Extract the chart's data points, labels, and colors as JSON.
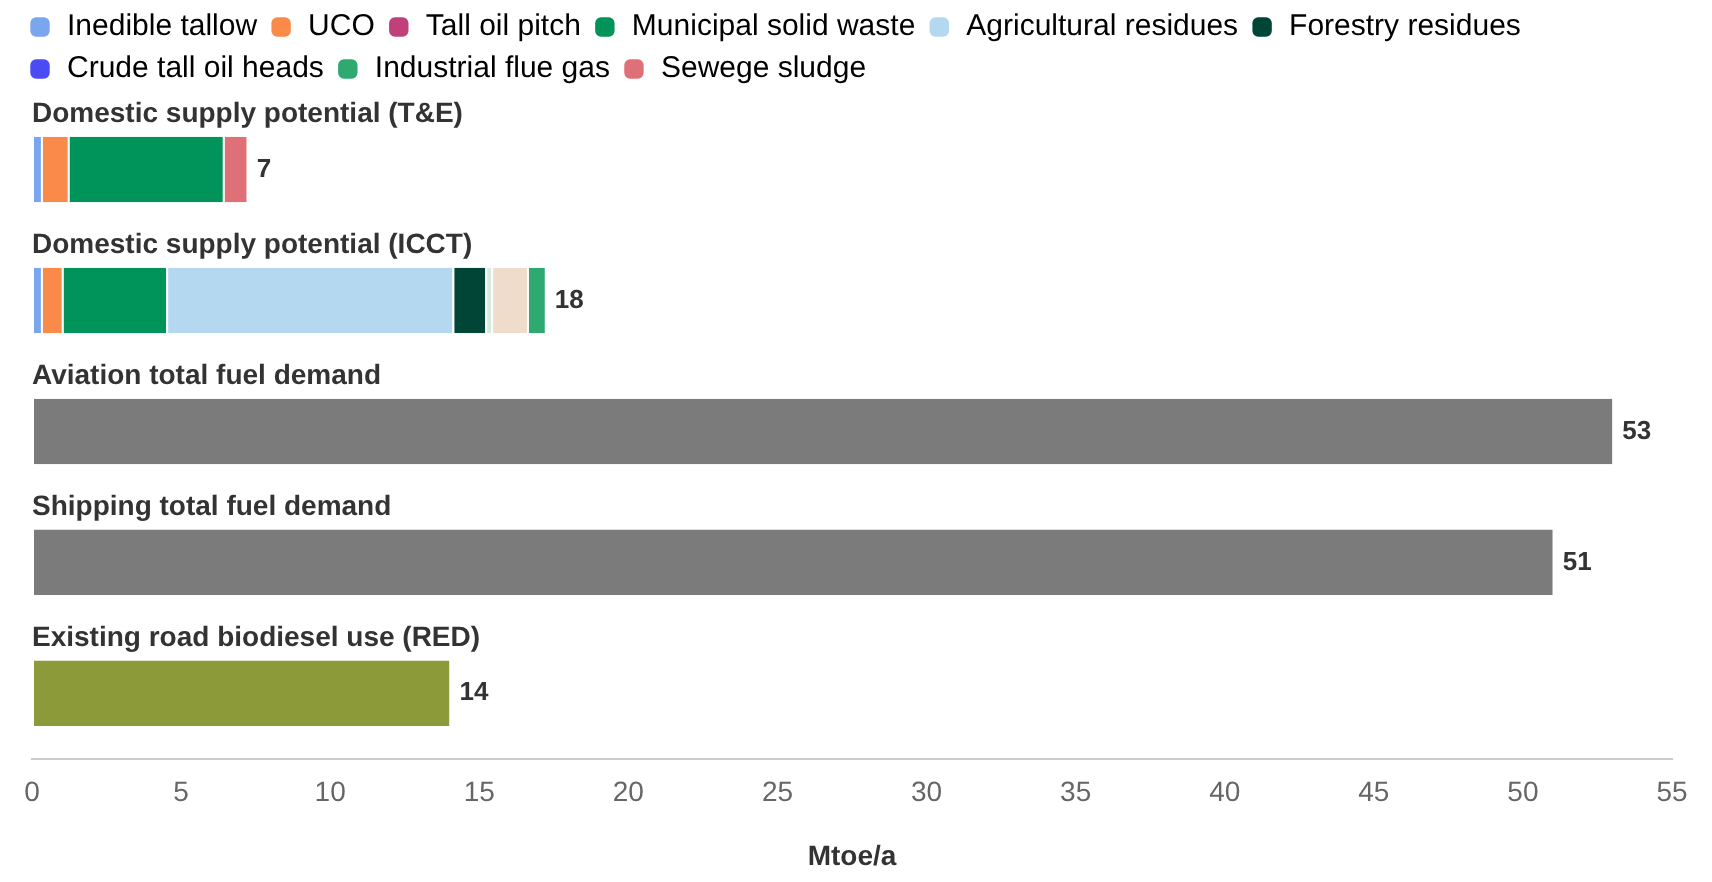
{
  "chart_data": {
    "type": "bar",
    "orientation": "horizontal",
    "stacked": true,
    "xlabel": "Mtoe/a",
    "categories": [
      "Domestic supply potential (T&E)",
      "Domestic supply potential (ICCT)",
      "Aviation total fuel demand",
      "Shipping total fuel demand",
      "Existing road biodiesel use (RED)"
    ],
    "series": [
      {
        "name": "Inedible tallow",
        "color": "#7aa6f0",
        "values": [
          0.3,
          0.3,
          null,
          null,
          null
        ]
      },
      {
        "name": "UCO",
        "color": "#fa8a4a",
        "values": [
          0.9,
          0.7,
          null,
          null,
          null
        ]
      },
      {
        "name": "Tall oil pitch",
        "color": "#c0407a",
        "values": [
          null,
          null,
          null,
          null,
          null
        ]
      },
      {
        "name": "Municipal solid waste",
        "color": "#00945a",
        "values": [
          5.2,
          3.5,
          null,
          null,
          null
        ]
      },
      {
        "name": "Agricultural residues",
        "color": "#b3d8f0",
        "values": [
          null,
          9.6,
          null,
          null,
          null
        ]
      },
      {
        "name": "Forestry residues",
        "color": "#004535",
        "values": [
          null,
          1.1,
          null,
          null,
          null
        ]
      },
      {
        "name": "Crude tall oil heads",
        "color": "#4b4bf5",
        "values": [
          null,
          null,
          null,
          null,
          null
        ]
      },
      {
        "name": "Industrial flue gas",
        "color": "#2eaa70",
        "values": [
          null,
          null,
          null,
          null,
          null
        ]
      },
      {
        "name": "Sewege sludge",
        "color": "#e07078",
        "values": [
          0.8,
          null,
          null,
          null,
          null
        ]
      },
      {
        "color": "#d4ecdc",
        "values": [
          null,
          0.2,
          null,
          null,
          null
        ]
      },
      {
        "color": "#f0dccb",
        "values": [
          null,
          1.2,
          null,
          null,
          null
        ]
      },
      {
        "color": "#2eaa70",
        "values": [
          null,
          0.6,
          null,
          null,
          null
        ]
      },
      {
        "colors": [
          "#7b7b7b",
          "#7b7b7b",
          "#7b7b7b",
          "#7b7b7b",
          "#8c9a3a"
        ],
        "values": [
          null,
          null,
          53,
          51,
          14
        ]
      }
    ],
    "totals": [
      "7",
      "18",
      "53",
      "51",
      "14"
    ],
    "xlim": [
      0,
      55
    ],
    "xticks": [
      0,
      5,
      10,
      15,
      20,
      25,
      30,
      35,
      40,
      45,
      50,
      55
    ],
    "grid": false,
    "legend": "top left"
  }
}
